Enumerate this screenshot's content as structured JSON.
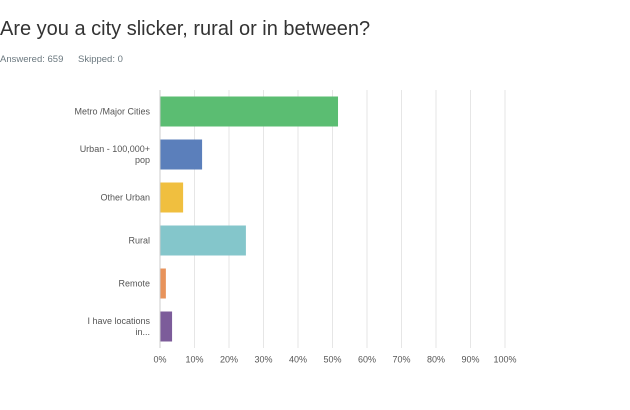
{
  "chart_data": {
    "type": "bar",
    "orientation": "horizontal",
    "title": "Are you a city slicker, rural or in between?",
    "answered": "Answered: 659",
    "skipped": "Skipped: 0",
    "categories": [
      "Metro /Major Cities",
      "Urban - 100,000+ pop",
      "Other Urban",
      "Rural",
      "Remote",
      "I have locations in..."
    ],
    "values": [
      51.6,
      12.2,
      6.7,
      24.9,
      1.7,
      3.5
    ],
    "colors": [
      "#5bbd72",
      "#5b7fbb",
      "#f0bf3f",
      "#84c6cb",
      "#e8935b",
      "#7c5c9a"
    ],
    "xlim": [
      0,
      100
    ],
    "xticks": [
      {
        "value": 0,
        "label": "0%"
      },
      {
        "value": 10,
        "label": "10%"
      },
      {
        "value": 20,
        "label": "20%"
      },
      {
        "value": 30,
        "label": "30%"
      },
      {
        "value": 40,
        "label": "40%"
      },
      {
        "value": 50,
        "label": "50%"
      },
      {
        "value": 60,
        "label": "60%"
      },
      {
        "value": 70,
        "label": "70%"
      },
      {
        "value": 80,
        "label": "80%"
      },
      {
        "value": 90,
        "label": "90%"
      },
      {
        "value": 100,
        "label": "100%"
      }
    ],
    "grid": true
  }
}
